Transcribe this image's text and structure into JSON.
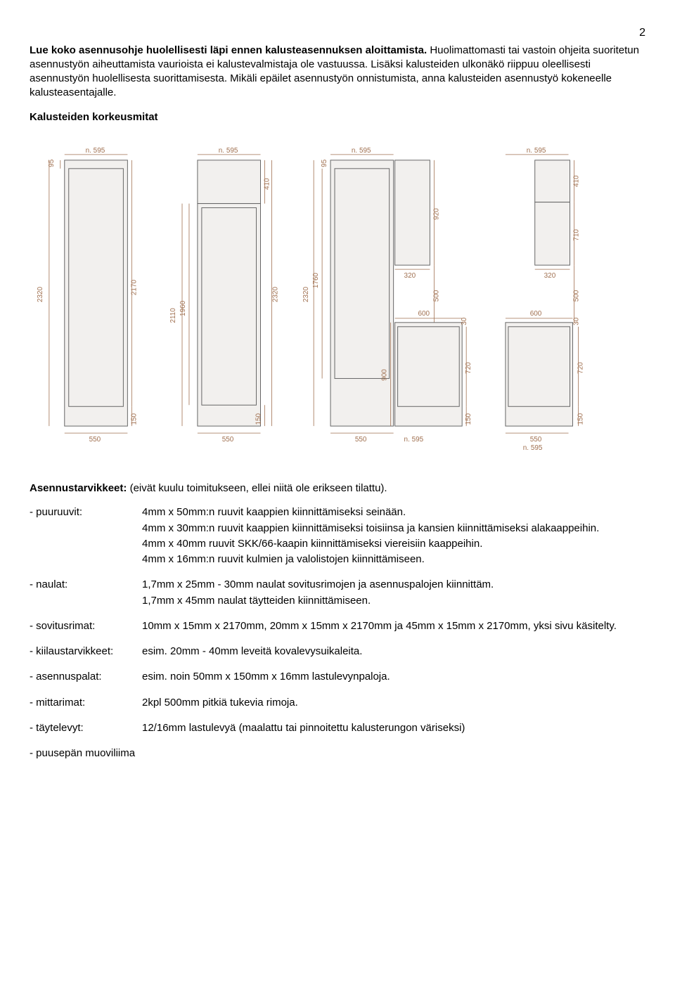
{
  "page_number": "2",
  "intro": {
    "bold_sentence": "Lue koko asennusohje huolellisesti läpi ennen kalusteasennuksen aloittamista.",
    "rest": "Huolimattomasti tai vastoin ohjeita suoritetun asennustyön aiheuttamista vaurioista ei kalustevalmistaja ole vastuussa. Lisäksi kalusteiden ulkonäkö riippuu oleellisesti asennustyön huolellisesta suorittamisesta. Mikäli epäilet asennustyön onnistumista, anna kalusteiden asennustyö kokeneelle kalusteasentajalle."
  },
  "heights_title": "Kalusteiden korkeusmitat",
  "diagram": {
    "colors": {
      "dim_text": "#a07050",
      "dim_line": "#a07050",
      "cabinet_fill": "#f2f0ee",
      "cabinet_stroke": "#666666",
      "background": "#ffffff"
    },
    "font_size_dim": 10,
    "units": [
      {
        "top_width": "n. 595",
        "base_width": "550",
        "left_outer": "2320",
        "left_inner": "2170",
        "right_sock": "150",
        "top_inner_h": "95"
      },
      {
        "top_width": "n. 595",
        "base_width": "550",
        "left_outer": "2110",
        "left_inner": "1960",
        "right_outer": "2320",
        "right_sock": "150",
        "top_box_h": "410"
      },
      {
        "top_width": "n. 595",
        "base_width": "550",
        "bottom_width": "n. 595",
        "left_inner": "1760",
        "left_outer": "2320",
        "top_inner_h": "95",
        "upper_w": "320",
        "gap_h": "500",
        "mid_sock": "30",
        "lower_inner": "900",
        "right_sock": "150",
        "upper_door_h": "920",
        "lower_w": "600",
        "lower_door_h": "720"
      },
      {
        "top_width": "n. 595",
        "base_width": "550",
        "bottom_width": "n. 595",
        "upper_w": "320",
        "top_box_h": "410",
        "upper_door_h": "710",
        "gap_h": "500",
        "mid_sock": "30",
        "lower_w": "600",
        "lower_door_h": "720",
        "right_sock": "150"
      }
    ]
  },
  "supplies_title_bold": "Asennustarvikkeet:",
  "supplies_title_rest": " (eivät kuulu toimitukseen, ellei niitä ole erikseen tilattu).",
  "supplies": [
    {
      "label": "- puuruuvit:",
      "lines": [
        "4mm x 50mm:n ruuvit kaappien kiinnittämiseksi seinään.",
        "4mm x 30mm:n ruuvit kaappien kiinnittämiseksi toisiinsa ja kansien kiinnittämiseksi alakaappeihin.",
        "4mm x 40mm ruuvit SKK/66-kaapin kiinnittämiseksi viereisiin kaappeihin.",
        "4mm x 16mm:n ruuvit kulmien ja valolistojen kiinnittämiseen."
      ]
    },
    {
      "label": "- naulat:",
      "lines": [
        "1,7mm x 25mm - 30mm naulat sovitusrimojen ja asennuspalojen kiinnittäm.",
        "1,7mm x 45mm naulat täytteiden kiinnittämiseen."
      ]
    },
    {
      "label": "- sovitusrimat:",
      "lines": [
        "10mm x 15mm x 2170mm,  20mm x 15mm x 2170mm  ja  45mm x 15mm x 2170mm, yksi sivu käsitelty."
      ]
    },
    {
      "label": "- kiilaustarvikkeet:",
      "lines": [
        "esim. 20mm - 40mm leveitä kovalevysuikaleita."
      ]
    },
    {
      "label": "- asennuspalat:",
      "lines": [
        "esim. noin 50mm x 150mm x 16mm lastulevynpaloja."
      ]
    },
    {
      "label": "- mittarimat:",
      "lines": [
        "2kpl 500mm pitkiä tukevia rimoja."
      ]
    },
    {
      "label": "- täytelevyt:",
      "lines": [
        "12/16mm lastulevyä (maalattu tai pinnoitettu kalusterungon väriseksi)"
      ]
    }
  ],
  "last_line": "- puusepän muoviliima"
}
